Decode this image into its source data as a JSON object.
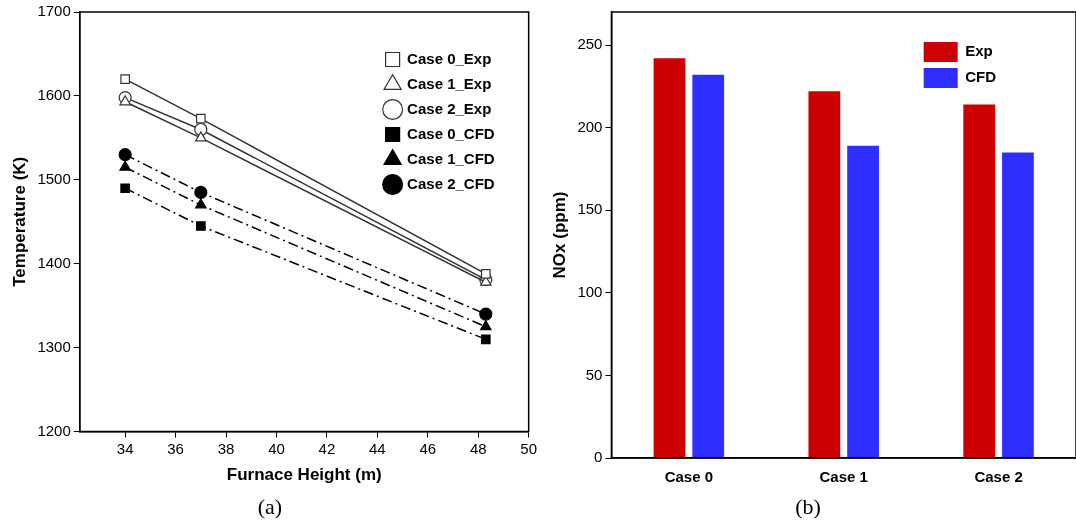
{
  "chart_data": [
    {
      "type": "line",
      "xlabel": "Furnace Height (m)",
      "ylabel": "Temperature (K)",
      "x": [
        34,
        37,
        48.3
      ],
      "xlim": [
        32.2,
        50
      ],
      "xticks": [
        34,
        36,
        38,
        40,
        42,
        44,
        46,
        48,
        50
      ],
      "ylim": [
        1200,
        1700
      ],
      "yticks": [
        1200,
        1300,
        1400,
        1500,
        1600,
        1700
      ],
      "grid": false,
      "legend": "top right",
      "annotations": [
        "(a)"
      ],
      "series": [
        {
          "name": "Case 0_Exp",
          "color": "#333333",
          "marker": "square",
          "line_style": "solid",
          "values": [
            1620,
            1573,
            1388
          ]
        },
        {
          "name": "Case 1_Exp",
          "color": "#333333",
          "marker": "triangle",
          "line_style": "solid",
          "values": [
            1593,
            1550,
            1378
          ]
        },
        {
          "name": "Case 2_Exp",
          "color": "#333333",
          "marker": "circle",
          "line_style": "solid",
          "values": [
            1598,
            1560,
            1381
          ]
        },
        {
          "name": "Case 0_CFD",
          "color": "#000000",
          "marker": "square",
          "line_style": "dashed",
          "values": [
            1490,
            1445,
            1310
          ]
        },
        {
          "name": "Case 1_CFD",
          "color": "#000000",
          "marker": "triangle",
          "line_style": "dashed",
          "values": [
            1515,
            1470,
            1325
          ]
        },
        {
          "name": "Case 2_CFD",
          "color": "#000000",
          "marker": "circle",
          "line_style": "dashed",
          "values": [
            1530,
            1485,
            1340
          ]
        }
      ]
    },
    {
      "type": "bar",
      "ylabel": "NOx (ppm)",
      "categories": [
        "Case 0",
        "Case 1",
        "Case 2"
      ],
      "ylim": [
        0,
        270
      ],
      "yticks": [
        0,
        50,
        100,
        150,
        200,
        250
      ],
      "grid": false,
      "legend": "top right",
      "annotations": [
        "(b)"
      ],
      "series": [
        {
          "name": "Exp",
          "color": "#cc0000",
          "values": [
            242,
            222,
            214
          ]
        },
        {
          "name": "CFD",
          "color": "#2e2eff",
          "values": [
            232,
            189,
            185
          ]
        }
      ]
    }
  ]
}
